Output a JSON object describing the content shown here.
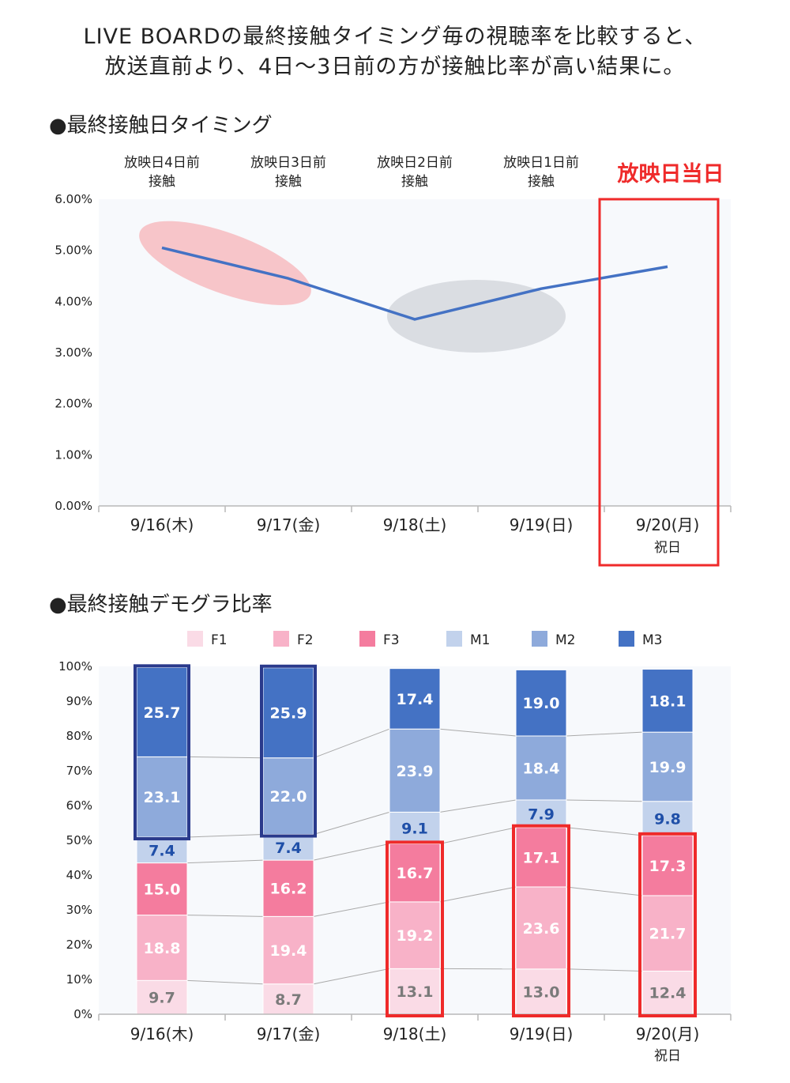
{
  "headline": {
    "line1": "LIVE BOARDの最終接触タイミング毎の視聴率を比較すると、",
    "line2": "放送直前より、4日〜3日前の方が接触比率が高い結果に。"
  },
  "chart_data": [
    {
      "type": "line",
      "title": "●最終接触日タイミング",
      "categories": [
        "9/16(木)",
        "9/17(金)",
        "9/18(土)",
        "9/19(日)",
        "9/20(月)"
      ],
      "category_sublabels": [
        "",
        "",
        "",
        "",
        "祝日"
      ],
      "top_labels": [
        [
          "放映日4日前",
          "接触"
        ],
        [
          "放映日3日前",
          "接触"
        ],
        [
          "放映日2日前",
          "接触"
        ],
        [
          "放映日1日前",
          "接触"
        ]
      ],
      "highlight_label": "放映日当日",
      "y_tick_labels": [
        "0.00%",
        "1.00%",
        "2.00%",
        "3.00%",
        "4.00%",
        "5.00%",
        "6.00%"
      ],
      "ylim": [
        0,
        6
      ],
      "values": [
        5.05,
        4.45,
        3.65,
        4.25,
        4.68
      ],
      "colors": {
        "line": "#4472C4",
        "highlight": "#ef2a2a",
        "oval_pink": "#f7c5c9",
        "oval_gray": "#dadde2"
      }
    },
    {
      "type": "stacked-bar",
      "title": "●最終接触デモグラ比率",
      "categories": [
        "9/16(木)",
        "9/17(金)",
        "9/18(土)",
        "9/19(日)",
        "9/20(月)"
      ],
      "category_sublabels": [
        "",
        "",
        "",
        "",
        "祝日"
      ],
      "y_tick_labels": [
        "0%",
        "10%",
        "20%",
        "30%",
        "40%",
        "50%",
        "60%",
        "70%",
        "80%",
        "90%",
        "100%"
      ],
      "ylim": [
        0,
        100
      ],
      "series": [
        {
          "name": "F1",
          "color": "#fadbe6",
          "label_color": "#7a7a7a",
          "values": [
            9.7,
            8.7,
            13.1,
            13.0,
            12.4
          ]
        },
        {
          "name": "F2",
          "color": "#f8b2c8",
          "label_color": "#ffffff",
          "values": [
            18.8,
            19.4,
            19.2,
            23.6,
            21.7
          ]
        },
        {
          "name": "F3",
          "color": "#f47c9e",
          "label_color": "#ffffff",
          "values": [
            15.0,
            16.2,
            16.7,
            17.1,
            17.3
          ]
        },
        {
          "name": "M1",
          "color": "#c2d2ec",
          "label_color": "#1f4fa8",
          "values": [
            7.4,
            7.4,
            9.1,
            7.9,
            9.8
          ]
        },
        {
          "name": "M2",
          "color": "#8eaadb",
          "label_color": "#ffffff",
          "values": [
            23.1,
            22.0,
            23.9,
            18.4,
            19.9
          ]
        },
        {
          "name": "M3",
          "color": "#4472C4",
          "label_color": "#ffffff",
          "values": [
            25.7,
            25.9,
            17.4,
            19.0,
            18.1
          ]
        }
      ],
      "highlights": {
        "navy_boxes": {
          "bars": [
            0,
            1
          ],
          "series_from": 4,
          "series_to": 5,
          "color": "#2a3a8c"
        },
        "red_boxes": {
          "bars": [
            2,
            3,
            4
          ],
          "series_from": 0,
          "series_to": 2,
          "color": "#ef2a2a"
        }
      }
    }
  ]
}
